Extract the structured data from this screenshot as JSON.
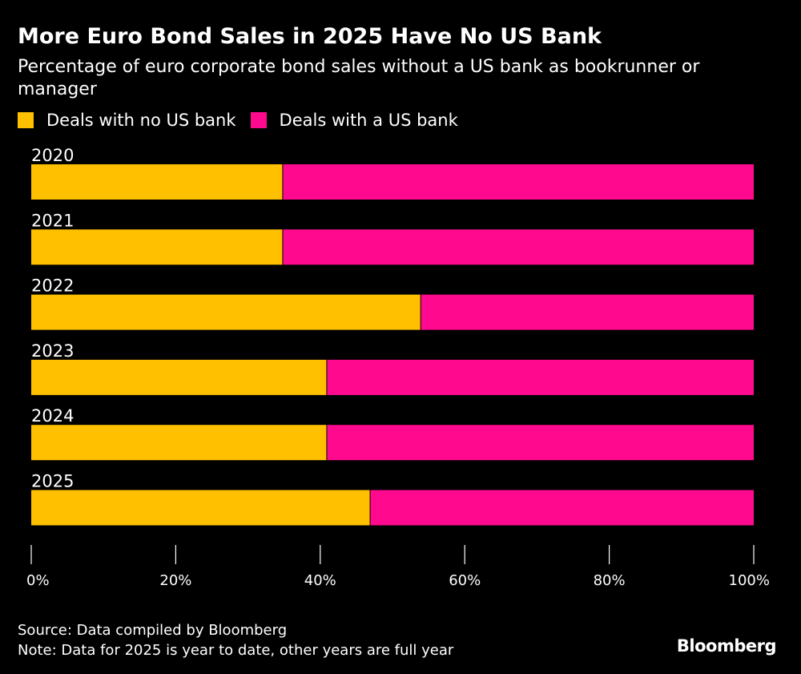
{
  "header": {
    "title": "More Euro Bond Sales in 2025 Have No US Bank",
    "subtitle": "Percentage of euro corporate bond sales without a US bank as bookrunner or manager"
  },
  "legend": {
    "items": [
      {
        "label": "Deals with no US bank",
        "color": "#FFC000"
      },
      {
        "label": "Deals with a US bank",
        "color": "#FF0A8F"
      }
    ]
  },
  "chart_data": {
    "type": "bar",
    "orientation": "horizontal",
    "stacked": true,
    "categories": [
      "2020",
      "2021",
      "2022",
      "2023",
      "2024",
      "2025"
    ],
    "series": [
      {
        "name": "Deals with no US bank",
        "values": [
          34.8,
          34.8,
          53.9,
          40.9,
          40.9,
          46.9
        ],
        "color": "#FFC000"
      },
      {
        "name": "Deals with a US bank",
        "values": [
          65.2,
          65.2,
          46.1,
          59.1,
          59.1,
          53.1
        ],
        "color": "#FF0A8F"
      }
    ],
    "xlim": [
      0,
      100
    ],
    "xticks": [
      {
        "value": 0,
        "label": "0%"
      },
      {
        "value": 20,
        "label": "20%"
      },
      {
        "value": 40,
        "label": "40%"
      },
      {
        "value": 60,
        "label": "60%"
      },
      {
        "value": 80,
        "label": "80%"
      },
      {
        "value": 100,
        "label": "100%"
      }
    ],
    "grid": false,
    "legend_position": "top-left"
  },
  "footer": {
    "source": "Source: Data compiled by Bloomberg",
    "note": "Note: Data for 2025 is year to date, other years are full year"
  },
  "brand": {
    "logo_text": "Bloomberg"
  }
}
